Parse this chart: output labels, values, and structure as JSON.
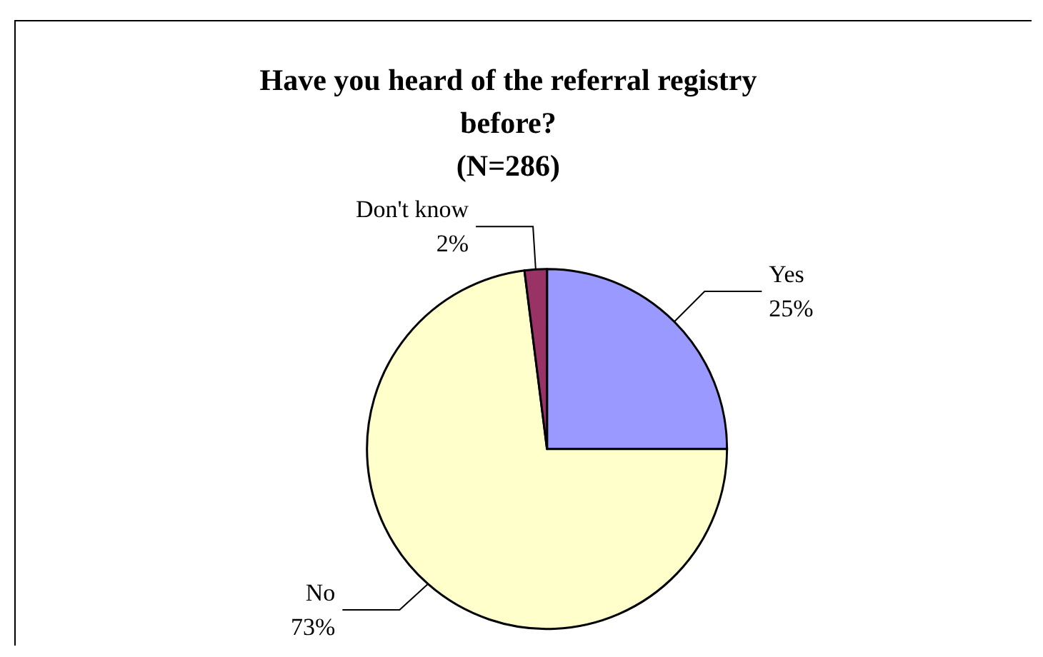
{
  "chart_data": {
    "type": "pie",
    "title": "Have you heard of the referral registry\nbefore?\n(N=286)",
    "categories": [
      "Yes",
      "No",
      "Don't know"
    ],
    "values": [
      25,
      73,
      2
    ],
    "value_labels": [
      "25%",
      "73%",
      "2%"
    ],
    "colors": [
      "#9999ff",
      "#ffffcc",
      "#993366"
    ],
    "legend": false
  }
}
